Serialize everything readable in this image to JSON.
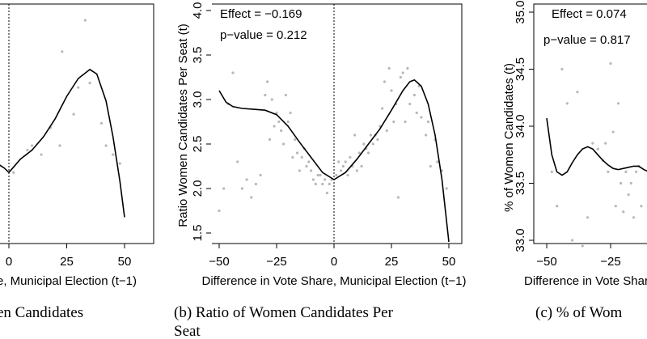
{
  "chart_data": [
    {
      "type": "scatter",
      "panel_id": "a",
      "title": "",
      "xlabel": "e, Municipal Election (t−1)",
      "ylabel": "",
      "xlim": [
        -32,
        56
      ],
      "ylim": [
        1.5,
        4.1
      ],
      "x_ticks": [
        0,
        25,
        50
      ],
      "y_ticks": [],
      "cutoff": 0,
      "caption": "en Candidates",
      "points": [
        [
          2,
          2.1
        ],
        [
          8,
          2.35
        ],
        [
          10,
          2.4
        ],
        [
          14,
          2.3
        ],
        [
          18,
          2.6
        ],
        [
          22,
          2.4
        ],
        [
          23,
          3.45
        ],
        [
          28,
          2.75
        ],
        [
          30,
          3.05
        ],
        [
          33,
          3.8
        ],
        [
          35,
          3.1
        ],
        [
          40,
          2.65
        ],
        [
          42,
          2.4
        ],
        [
          45,
          2.3
        ],
        [
          48,
          2.2
        ]
      ],
      "fit_left": [
        [
          -5,
          2.2
        ],
        [
          -2,
          2.15
        ],
        [
          0,
          2.1
        ]
      ],
      "fit_right": [
        [
          0,
          2.1
        ],
        [
          5,
          2.25
        ],
        [
          10,
          2.35
        ],
        [
          15,
          2.5
        ],
        [
          20,
          2.7
        ],
        [
          25,
          2.95
        ],
        [
          30,
          3.15
        ],
        [
          35,
          3.25
        ],
        [
          38,
          3.2
        ],
        [
          42,
          2.9
        ],
        [
          45,
          2.5
        ],
        [
          48,
          2.0
        ],
        [
          50,
          1.6
        ]
      ]
    },
    {
      "type": "scatter",
      "panel_id": "b",
      "title": "",
      "xlabel": "Difference in Vote Share, Municipal Election (t−1)",
      "ylabel": "Ratio Women Candidates Per Seat (t)",
      "xlim": [
        -53,
        53
      ],
      "ylim": [
        1.5,
        4.0
      ],
      "x_ticks": [
        -50,
        -25,
        0,
        25,
        50
      ],
      "x_tick_labels": [
        "−50",
        "−25",
        "0",
        "25",
        "50"
      ],
      "y_ticks": [
        1.5,
        2.0,
        2.5,
        3.0,
        3.5,
        4.0
      ],
      "y_tick_labels": [
        "1.5",
        "2.0",
        "2.5",
        "3.0",
        "3.5",
        "4.0"
      ],
      "cutoff": 0,
      "effect_label": "Effect = −0.169",
      "pvalue_label": "p−value = 0.212",
      "caption_line1": "(b) Ratio of Women Candidates Per",
      "caption_line2": "Seat",
      "points": [
        [
          -50,
          1.75
        ],
        [
          -48,
          2.0
        ],
        [
          -46,
          2.95
        ],
        [
          -44,
          3.3
        ],
        [
          -42,
          2.3
        ],
        [
          -40,
          2.0
        ],
        [
          -38,
          2.1
        ],
        [
          -36,
          1.9
        ],
        [
          -34,
          2.05
        ],
        [
          -32,
          2.15
        ],
        [
          -30,
          3.05
        ],
        [
          -29,
          3.2
        ],
        [
          -28,
          2.55
        ],
        [
          -27,
          3.0
        ],
        [
          -26,
          2.7
        ],
        [
          -25,
          2.85
        ],
        [
          -24,
          2.75
        ],
        [
          -23,
          2.65
        ],
        [
          -22,
          2.5
        ],
        [
          -21,
          3.05
        ],
        [
          -20,
          2.75
        ],
        [
          -19,
          2.85
        ],
        [
          -18,
          2.35
        ],
        [
          -17,
          2.55
        ],
        [
          -16,
          2.4
        ],
        [
          -15,
          2.2
        ],
        [
          -14,
          2.35
        ],
        [
          -13,
          2.45
        ],
        [
          -12,
          2.25
        ],
        [
          -11,
          2.3
        ],
        [
          -10,
          2.2
        ],
        [
          -9,
          2.1
        ],
        [
          -8,
          2.05
        ],
        [
          -7,
          2.15
        ],
        [
          -6,
          2.15
        ],
        [
          -5,
          2.05
        ],
        [
          -4,
          2.1
        ],
        [
          -3,
          1.95
        ],
        [
          -2,
          2.05
        ],
        [
          -1,
          2.1
        ],
        [
          1,
          2.15
        ],
        [
          2,
          2.3
        ],
        [
          3,
          2.2
        ],
        [
          4,
          2.25
        ],
        [
          5,
          2.3
        ],
        [
          6,
          2.15
        ],
        [
          7,
          2.35
        ],
        [
          8,
          2.25
        ],
        [
          9,
          2.6
        ],
        [
          10,
          2.2
        ],
        [
          11,
          2.4
        ],
        [
          12,
          2.25
        ],
        [
          13,
          2.5
        ],
        [
          14,
          2.45
        ],
        [
          15,
          2.4
        ],
        [
          16,
          2.6
        ],
        [
          17,
          2.5
        ],
        [
          18,
          2.6
        ],
        [
          19,
          2.55
        ],
        [
          20,
          2.7
        ],
        [
          21,
          2.9
        ],
        [
          22,
          3.2
        ],
        [
          23,
          2.65
        ],
        [
          24,
          3.35
        ],
        [
          25,
          3.1
        ],
        [
          26,
          2.75
        ],
        [
          27,
          2.95
        ],
        [
          28,
          1.9
        ],
        [
          29,
          3.25
        ],
        [
          30,
          3.3
        ],
        [
          31,
          2.75
        ],
        [
          32,
          3.35
        ],
        [
          33,
          2.95
        ],
        [
          35,
          3.05
        ],
        [
          36,
          2.85
        ],
        [
          37,
          3.15
        ],
        [
          38,
          2.8
        ],
        [
          40,
          2.6
        ],
        [
          41,
          2.75
        ],
        [
          42,
          2.25
        ],
        [
          44,
          2.55
        ],
        [
          45,
          2.3
        ],
        [
          47,
          2.2
        ],
        [
          49,
          2.0
        ]
      ],
      "fit_left": [
        [
          -50,
          3.1
        ],
        [
          -47,
          2.97
        ],
        [
          -44,
          2.92
        ],
        [
          -40,
          2.9
        ],
        [
          -35,
          2.89
        ],
        [
          -30,
          2.88
        ],
        [
          -25,
          2.83
        ],
        [
          -20,
          2.7
        ],
        [
          -15,
          2.52
        ],
        [
          -10,
          2.35
        ],
        [
          -5,
          2.18
        ],
        [
          0,
          2.1
        ]
      ],
      "fit_right": [
        [
          0,
          2.1
        ],
        [
          5,
          2.18
        ],
        [
          10,
          2.33
        ],
        [
          15,
          2.5
        ],
        [
          20,
          2.67
        ],
        [
          25,
          2.88
        ],
        [
          30,
          3.1
        ],
        [
          33,
          3.2
        ],
        [
          35,
          3.22
        ],
        [
          38,
          3.15
        ],
        [
          41,
          2.95
        ],
        [
          44,
          2.6
        ],
        [
          47,
          2.1
        ],
        [
          50,
          1.4
        ]
      ]
    },
    {
      "type": "scatter",
      "panel_id": "c",
      "title": "",
      "xlabel": "Difference in Vote Share",
      "ylabel": "% of Women Candidates (t)",
      "xlim": [
        -53,
        10
      ],
      "ylim": [
        33.0,
        35.0
      ],
      "x_ticks": [
        -50,
        -25
      ],
      "x_tick_labels": [
        "−50",
        "−25"
      ],
      "y_ticks": [
        33.0,
        33.5,
        34.0,
        34.5,
        35.0
      ],
      "y_tick_labels": [
        "33.0",
        "33.5",
        "34.0",
        "34.5",
        "35.0"
      ],
      "cutoff": 0,
      "effect_label": "Effect = 0.074",
      "pvalue_label": "p−value = 0.817",
      "caption": "(c) % of Wom",
      "points": [
        [
          -48,
          33.6
        ],
        [
          -46,
          33.3
        ],
        [
          -44,
          34.5
        ],
        [
          -42,
          34.2
        ],
        [
          -40,
          33.0
        ],
        [
          -38,
          34.3
        ],
        [
          -36,
          32.95
        ],
        [
          -34,
          33.2
        ],
        [
          -32,
          33.85
        ],
        [
          -30,
          33.8
        ],
        [
          -28,
          33.7
        ],
        [
          -27,
          33.85
        ],
        [
          -26,
          33.6
        ],
        [
          -25,
          34.55
        ],
        [
          -24,
          33.95
        ],
        [
          -23,
          33.3
        ],
        [
          -22,
          34.2
        ],
        [
          -21,
          33.5
        ],
        [
          -20,
          33.25
        ],
        [
          -19,
          33.6
        ],
        [
          -18,
          33.4
        ],
        [
          -17,
          33.5
        ],
        [
          -16,
          33.2
        ],
        [
          -15,
          33.6
        ],
        [
          -14,
          33.65
        ],
        [
          -13,
          33.3
        ]
      ],
      "fit_left": [
        [
          -50,
          34.07
        ],
        [
          -48,
          33.75
        ],
        [
          -46,
          33.6
        ],
        [
          -44,
          33.57
        ],
        [
          -42,
          33.6
        ],
        [
          -40,
          33.68
        ],
        [
          -38,
          33.75
        ],
        [
          -36,
          33.8
        ],
        [
          -34,
          33.82
        ],
        [
          -32,
          33.8
        ],
        [
          -30,
          33.75
        ],
        [
          -28,
          33.7
        ],
        [
          -26,
          33.66
        ],
        [
          -24,
          33.63
        ],
        [
          -22,
          33.62
        ],
        [
          -20,
          33.63
        ],
        [
          -18,
          33.64
        ],
        [
          -16,
          33.65
        ],
        [
          -14,
          33.65
        ],
        [
          -12,
          33.62
        ],
        [
          -10,
          33.6
        ],
        [
          -8,
          33.6
        ]
      ]
    }
  ]
}
